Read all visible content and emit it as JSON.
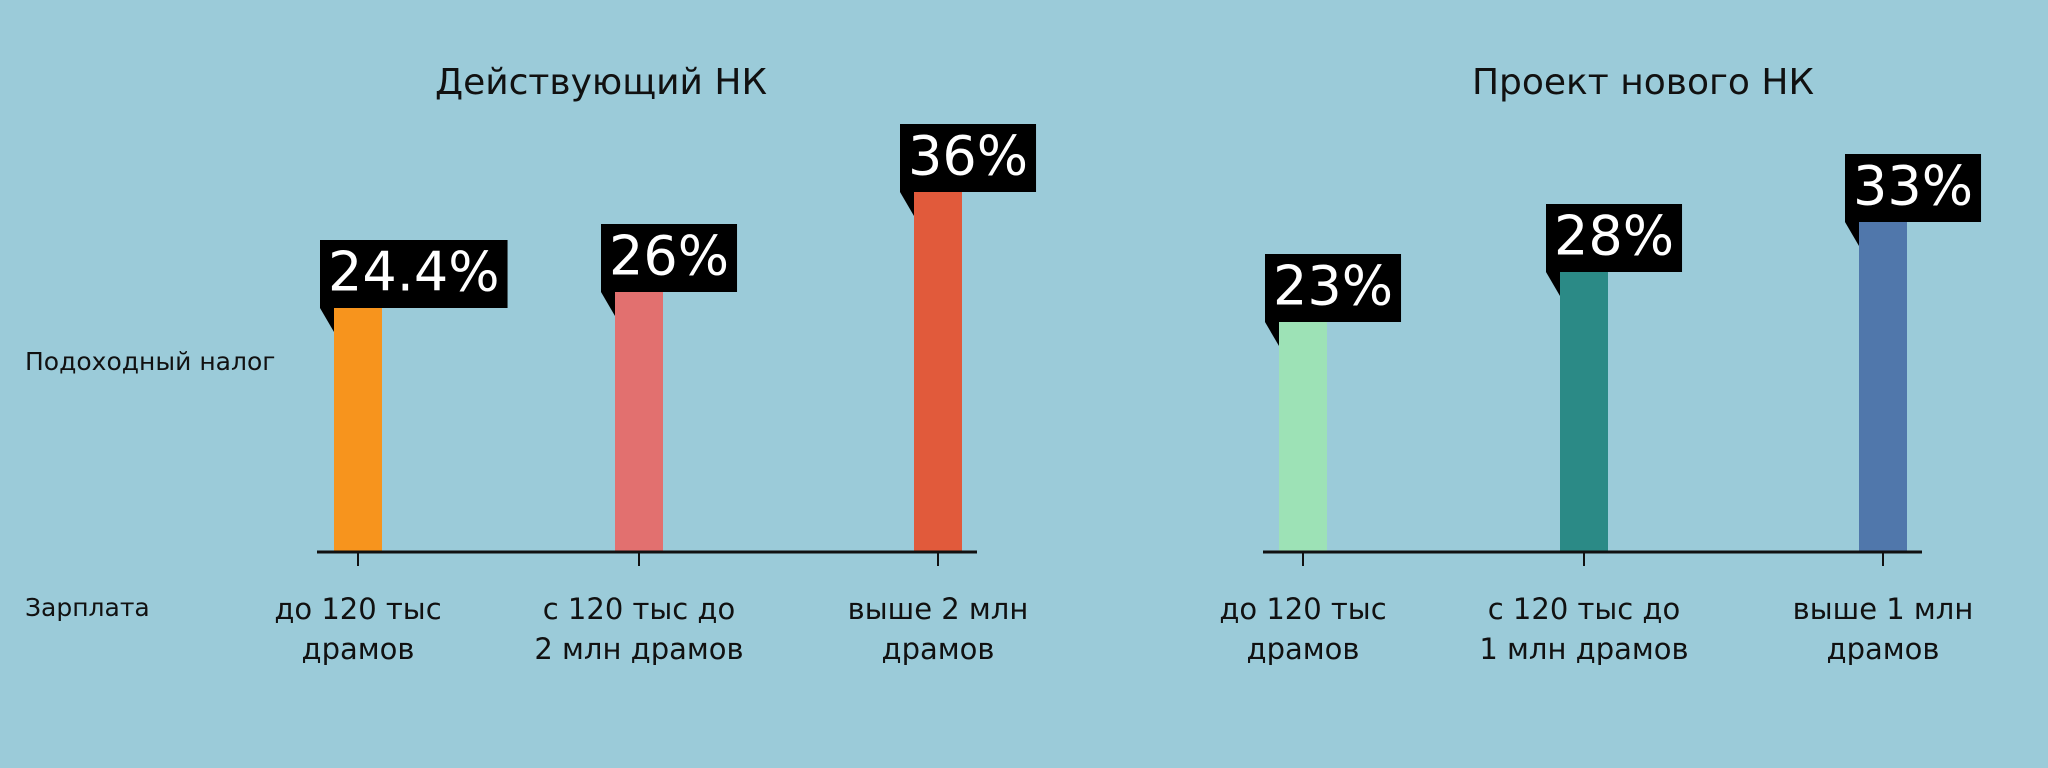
{
  "chart_data": [
    {
      "type": "bar",
      "title": "Действующий НК",
      "ylabel": "Подоходный налог",
      "xlabel": "Зарплата",
      "categories": [
        [
          "до 120 тыс",
          "драмов"
        ],
        [
          "с 120 тыс до",
          "2 млн драмов"
        ],
        [
          "выше 2 млн",
          "драмов"
        ]
      ],
      "values": [
        24.4,
        26,
        36
      ],
      "value_labels": [
        "24.4%",
        "26%",
        "36%"
      ],
      "colors": [
        "#f7941d",
        "#e2706f",
        "#e15a3b"
      ],
      "ylim": [
        0,
        40
      ]
    },
    {
      "type": "bar",
      "title": "Проект нового НК",
      "categories": [
        [
          "до 120 тыс",
          "драмов"
        ],
        [
          "с 120 тыс до",
          "1 млн драмов"
        ],
        [
          "выше 1 млн",
          "драмов"
        ]
      ],
      "values": [
        23,
        28,
        33
      ],
      "value_labels": [
        "23%",
        "28%",
        "33%"
      ],
      "colors": [
        "#9de2b6",
        "#2b8a86",
        "#5077ab"
      ],
      "ylim": [
        0,
        40
      ]
    }
  ]
}
